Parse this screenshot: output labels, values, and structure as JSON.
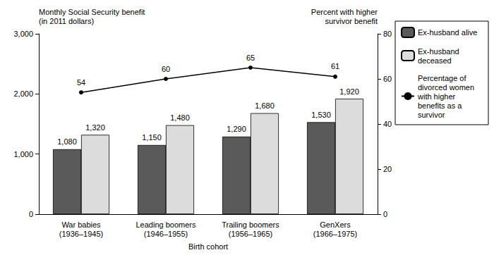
{
  "chart_data": {
    "type": "bar",
    "x_label": "Birth cohort",
    "y_label": "Monthly Social Security benefit\n(in 2011 dollars)",
    "y2_label": "Percent with higher\nsurvivor benefit",
    "categories": [
      "War babies\n(1936–1945)",
      "Leading boomers\n(1946–1955)",
      "Trailing boomers\n(1956–1965)",
      "GenXers\n(1966–1975)"
    ],
    "series": [
      {
        "name": "Ex-husband alive",
        "type": "bar",
        "color": "#5a5a5a",
        "values": [
          1080,
          1150,
          1290,
          1530
        ],
        "value_labels": [
          "1,080",
          "1,150",
          "1,290",
          "1,530"
        ]
      },
      {
        "name": "Ex-husband deceased",
        "type": "bar",
        "color": "#dcdcdc",
        "values": [
          1320,
          1480,
          1680,
          1920
        ],
        "value_labels": [
          "1,320",
          "1,480",
          "1,680",
          "1,920"
        ]
      },
      {
        "name": "Percentage of divorced women with higher benefits as a survivor",
        "type": "line",
        "axis": "y2",
        "color": "#000000",
        "marker": "circle",
        "line_style": "solid",
        "values": [
          54,
          60,
          65,
          61
        ]
      }
    ],
    "ylim": [
      0,
      3000
    ],
    "yticks": [
      0,
      {
        "value": 1000,
        "label": "1,000"
      },
      {
        "value": 2000,
        "label": "2,000"
      },
      {
        "value": 3000,
        "label": "3,000"
      }
    ],
    "y2lim": [
      0,
      80
    ],
    "y2ticks": [
      0,
      20,
      40,
      60,
      80
    ],
    "grid": false,
    "legend": "right",
    "data_labels": true
  }
}
